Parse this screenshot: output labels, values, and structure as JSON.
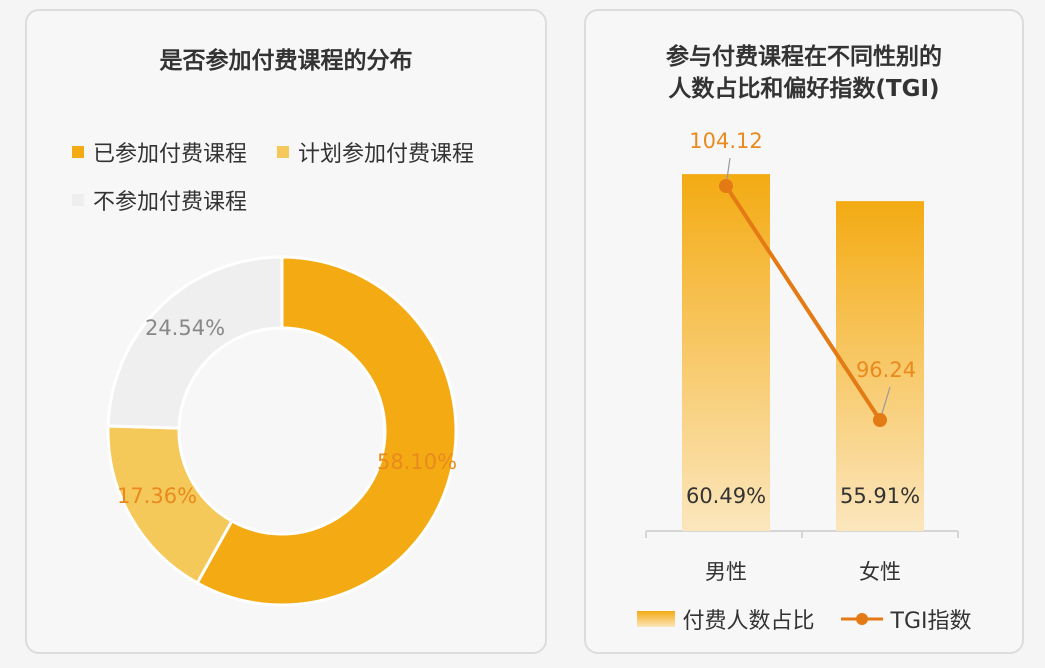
{
  "left": {
    "title": "是否参加付费课程的分布"
  },
  "right": {
    "title_line1": "参与付费课程在不同性别的",
    "title_line2": "人数占比和偏好指数(TGI)",
    "legend_bar": "付费人数占比",
    "legend_line": "TGI指数"
  },
  "colors": {
    "joined": "#f4ab13",
    "planned": "#f5c85a",
    "not_joined": "#efefef",
    "tgi_line": "#e47a14",
    "label_orange": "#e98a1e"
  },
  "chart_data": [
    {
      "type": "pie",
      "title": "是否参加付费课程的分布",
      "legend_position": "top-left",
      "slices": [
        {
          "name": "已参加付费课程",
          "value": 58.1,
          "label": "58.10%",
          "color": "#f4ab13"
        },
        {
          "name": "计划参加付费课程",
          "value": 17.36,
          "label": "17.36%",
          "color": "#f5c85a"
        },
        {
          "name": "不参加付费课程",
          "value": 24.54,
          "label": "24.54%",
          "color": "#efefef"
        }
      ]
    },
    {
      "type": "bar",
      "title": "参与付费课程在不同性别的人数占比和偏好指数(TGI)",
      "categories": [
        "男性",
        "女性"
      ],
      "legend_position": "bottom",
      "series": [
        {
          "name": "付费人数占比",
          "type": "bar",
          "values": [
            60.49,
            55.91
          ],
          "labels": [
            "60.49%",
            "55.91%"
          ]
        },
        {
          "name": "TGI指数",
          "type": "line",
          "values": [
            104.12,
            96.24
          ],
          "labels": [
            "104.12",
            "96.24"
          ]
        }
      ]
    }
  ]
}
